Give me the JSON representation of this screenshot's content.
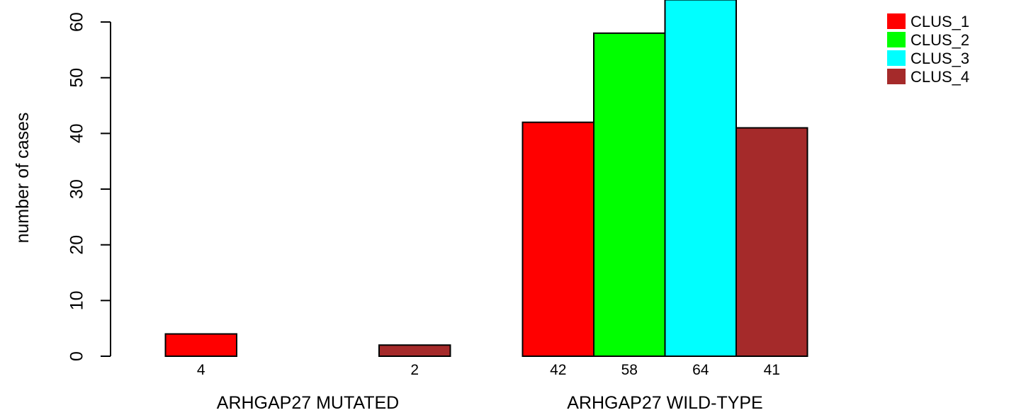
{
  "chart_data": {
    "type": "bar",
    "ylabel": "number of cases",
    "ylim": [
      0,
      65
    ],
    "yticks": [
      0,
      10,
      20,
      30,
      40,
      50,
      60
    ],
    "grid": false,
    "legend_position": "top-right",
    "groups": [
      {
        "label": "ARHGAP27 MUTATED",
        "values": [
          4,
          0,
          0,
          2
        ],
        "value_labels": [
          "4",
          "",
          "",
          "2"
        ]
      },
      {
        "label": "ARHGAP27 WILD-TYPE",
        "values": [
          42,
          58,
          64,
          41
        ],
        "value_labels": [
          "42",
          "58",
          "64",
          "41"
        ]
      }
    ],
    "series": [
      {
        "name": "CLUS_1",
        "color": "#ff0000"
      },
      {
        "name": "CLUS_2",
        "color": "#00ff00"
      },
      {
        "name": "CLUS_3",
        "color": "#00ffff"
      },
      {
        "name": "CLUS_4",
        "color": "#a52a2a"
      }
    ]
  }
}
